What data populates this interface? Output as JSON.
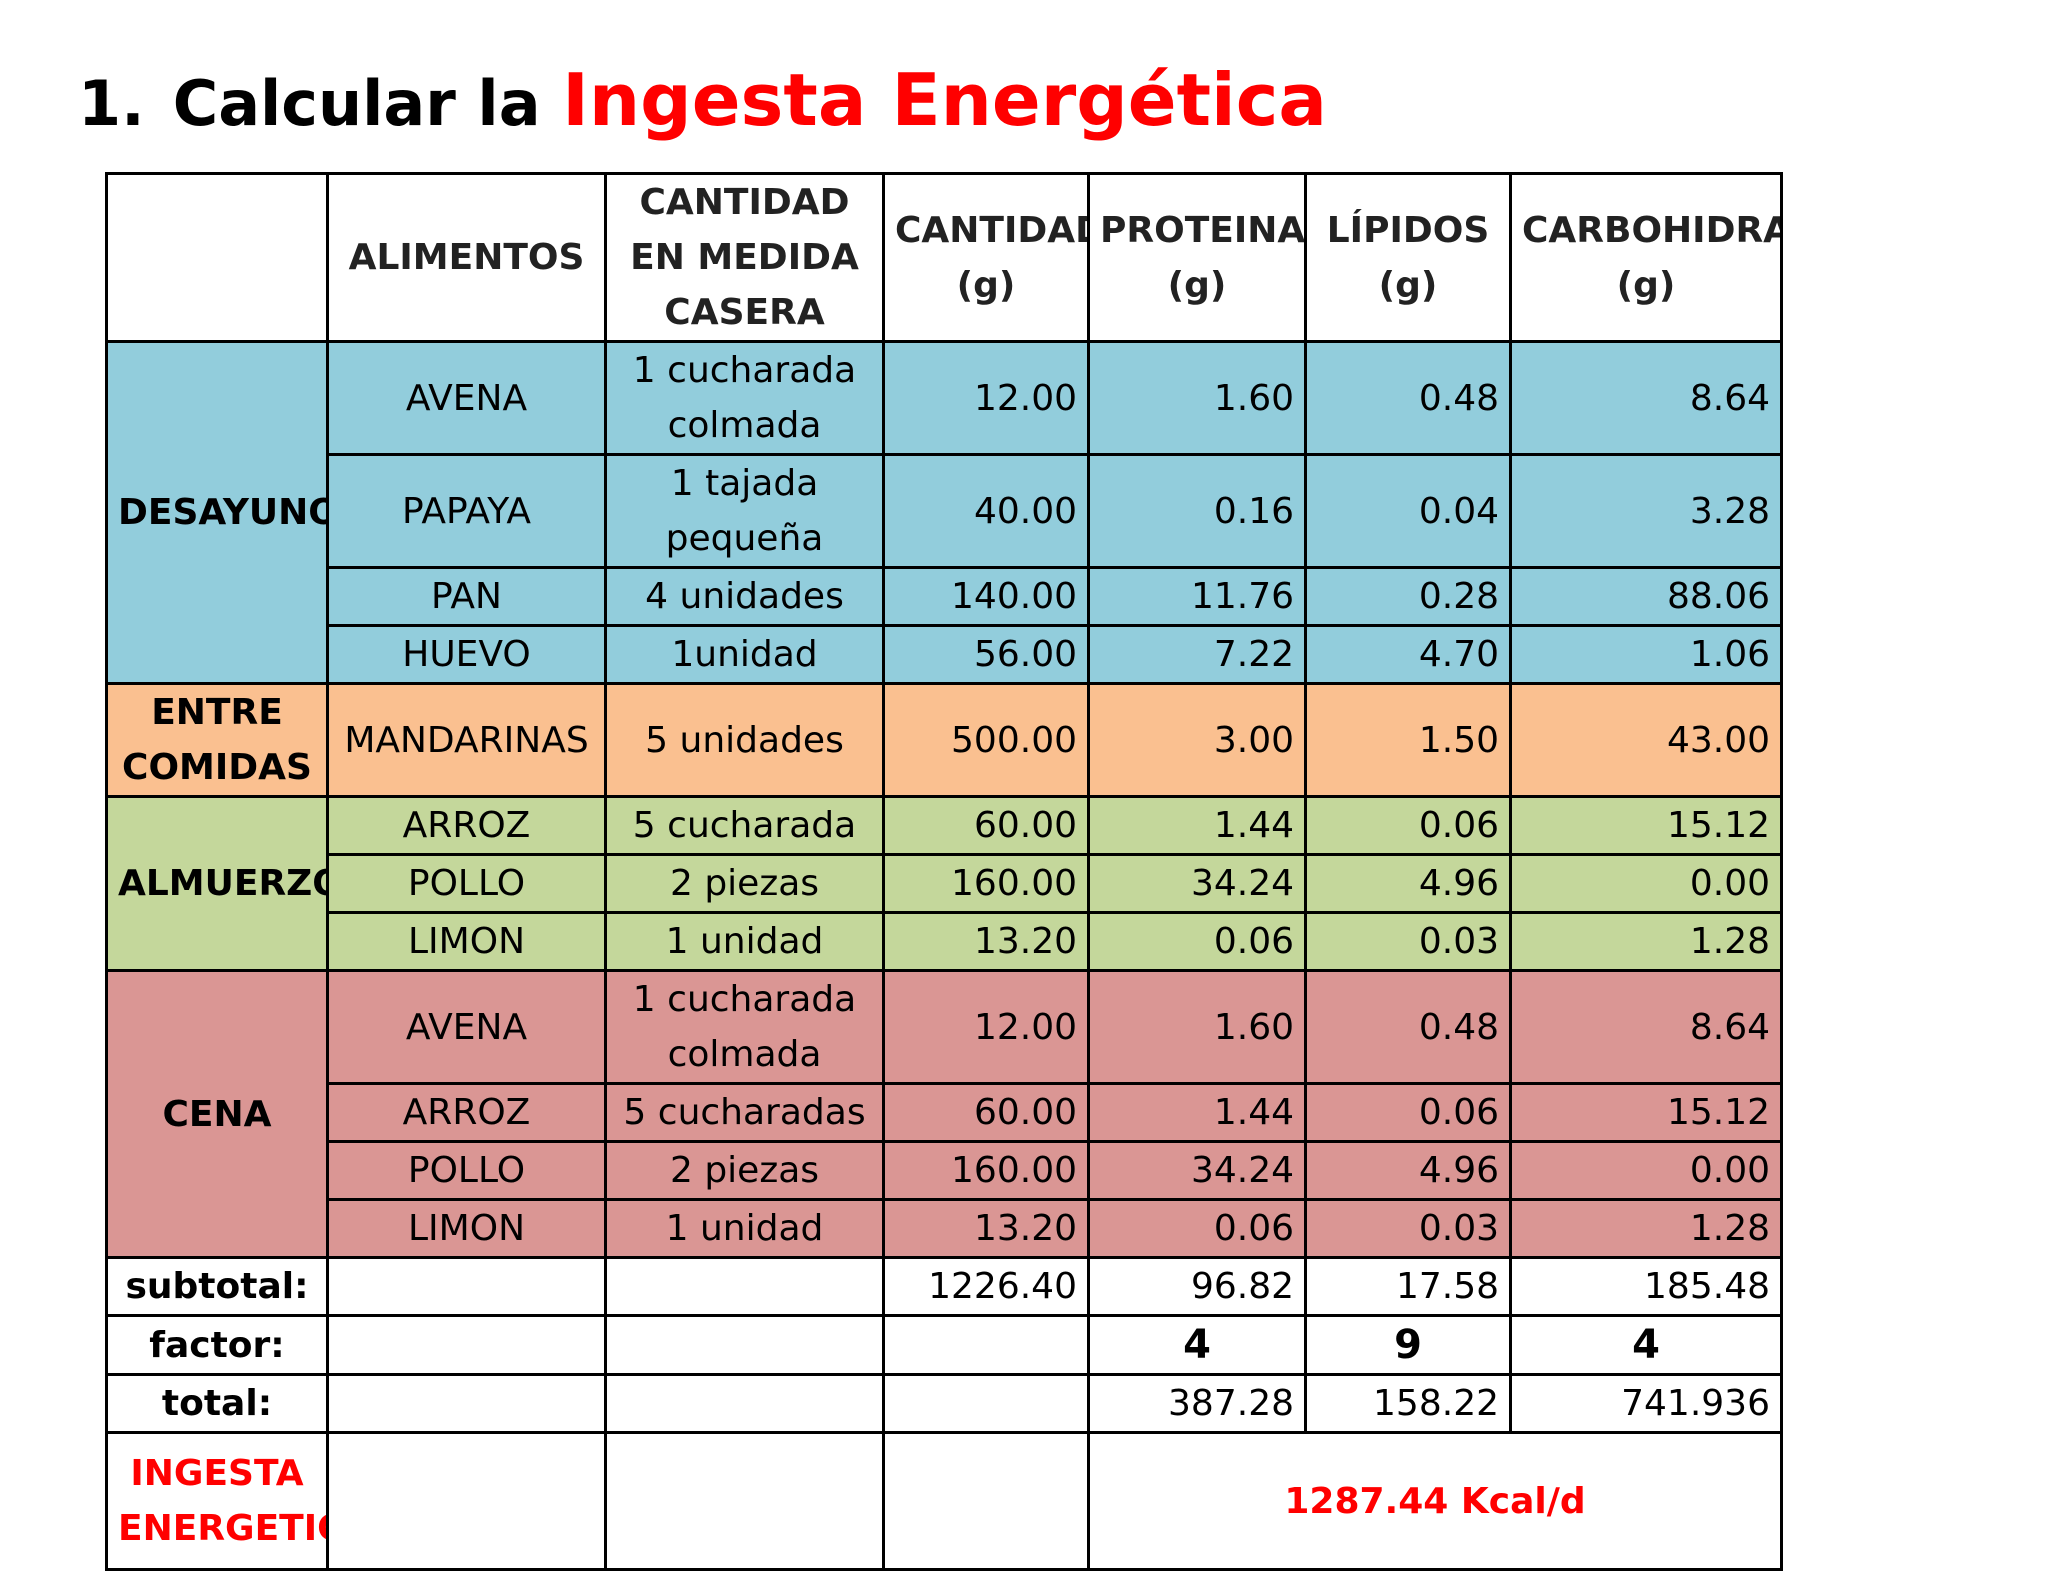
{
  "title": {
    "number": "1.",
    "prefix": "Calcular la",
    "accent": "Ingesta Energética"
  },
  "headers": [
    "",
    "ALIMENTOS",
    "CANTIDAD EN MEDIDA CASERA",
    "CANTIDAD (g)",
    "PROTEINAS (g)",
    "LÍPIDOS (g)",
    "CARBOHIDRATOS (g)"
  ],
  "meals": {
    "desayuno": "DESAYUNO",
    "entre": "ENTRE COMIDAS",
    "almuerzo": "ALMUERZO",
    "cena": "CENA"
  },
  "rows": [
    [
      "AVENA",
      "1 cucharada colmada",
      "12.00",
      "1.60",
      "0.48",
      "8.64"
    ],
    [
      "PAPAYA",
      "1 tajada pequeña",
      "40.00",
      "0.16",
      "0.04",
      "3.28"
    ],
    [
      "PAN",
      "4 unidades",
      "140.00",
      "11.76",
      "0.28",
      "88.06"
    ],
    [
      "HUEVO",
      "1unidad",
      "56.00",
      "7.22",
      "4.70",
      "1.06"
    ],
    [
      "MANDARINAS",
      "5 unidades",
      "500.00",
      "3.00",
      "1.50",
      "43.00"
    ],
    [
      "ARROZ",
      "5 cucharada",
      "60.00",
      "1.44",
      "0.06",
      "15.12"
    ],
    [
      "POLLO",
      "2 piezas",
      "160.00",
      "34.24",
      "4.96",
      "0.00"
    ],
    [
      "LIMON",
      "1 unidad",
      "13.20",
      "0.06",
      "0.03",
      "1.28"
    ],
    [
      "AVENA",
      "1 cucharada colmada",
      "12.00",
      "1.60",
      "0.48",
      "8.64"
    ],
    [
      "ARROZ",
      "5 cucharadas",
      "60.00",
      "1.44",
      "0.06",
      "15.12"
    ],
    [
      "POLLO",
      "2 piezas",
      "160.00",
      "34.24",
      "4.96",
      "0.00"
    ],
    [
      "LIMON",
      "1 unidad",
      "13.20",
      "0.06",
      "0.03",
      "1.28"
    ]
  ],
  "subtotal": {
    "label": "subtotal:",
    "cantidad": "1226.40",
    "proteinas": "96.82",
    "lipidos": "17.58",
    "carbohidratos": "185.48"
  },
  "factor": {
    "label": "factor:",
    "proteinas": "4",
    "lipidos": "9",
    "carbohidratos": "4"
  },
  "total": {
    "label": "total:",
    "proteinas": "387.28",
    "lipidos": "158.22",
    "carbohidratos": "741.936"
  },
  "ingesta": {
    "label": "INGESTA ENERGETICA",
    "value": "1287.44  Kcal/d"
  },
  "colors": {
    "desayuno": "#92cddc",
    "entre": "#fac090",
    "almuerzo": "#c4d79b",
    "cena": "#da9694",
    "accent": "#ff0000"
  }
}
